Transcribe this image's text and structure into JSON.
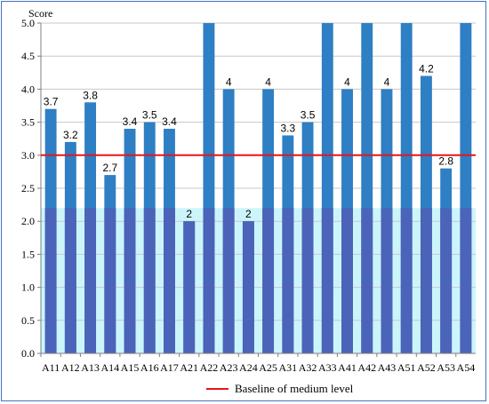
{
  "chart_data": {
    "type": "bar",
    "ylabel": "Score",
    "ylim": [
      0,
      5
    ],
    "yticks": [
      "0.0",
      "0.5",
      "1.0",
      "1.5",
      "2.0",
      "2.5",
      "3.0",
      "3.5",
      "4.0",
      "4.5",
      "5.0"
    ],
    "categories": [
      "A11",
      "A12",
      "A13",
      "A14",
      "A15",
      "A16",
      "A17",
      "A21",
      "A22",
      "A23",
      "A24",
      "A25",
      "A31",
      "A32",
      "A33",
      "A41",
      "A42",
      "A43",
      "A51",
      "A52",
      "A53",
      "A54"
    ],
    "values": [
      3.7,
      3.2,
      3.8,
      2.7,
      3.4,
      3.5,
      3.4,
      2.0,
      5.0,
      4.0,
      2.0,
      4.0,
      3.3,
      3.5,
      5.0,
      4.0,
      5.0,
      4.0,
      5.0,
      4.2,
      2.8,
      5.0
    ],
    "data_labels": [
      "3.7",
      "3.2",
      "3.8",
      "2.7",
      "3.4",
      "3.5",
      "3.4",
      "2",
      "",
      "4",
      "2",
      "4",
      "3.3",
      "3.5",
      "",
      "4",
      "",
      "4",
      "",
      "4.2",
      "2.8",
      ""
    ],
    "baseline": {
      "value": 3.0,
      "label": "Baseline of medium level",
      "color": "#e8141b"
    },
    "shaded_band": {
      "from": 0,
      "to": 2.2,
      "color": "#ccf5fb"
    },
    "bar_color": "#2e7fc4",
    "bar_color_in_band": "#4b63b8",
    "grid": true,
    "legend": "bottom"
  }
}
